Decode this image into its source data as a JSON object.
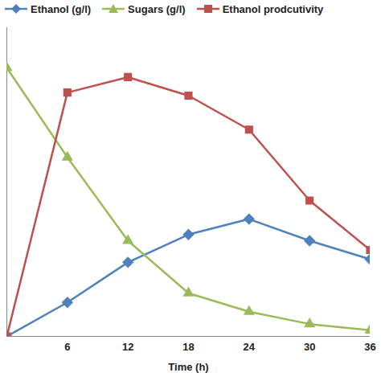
{
  "chart_data": {
    "type": "line",
    "x_label": "Time (h)",
    "x": [
      0,
      6,
      12,
      18,
      24,
      30,
      36
    ],
    "xlim": [
      0,
      36
    ],
    "xticks": [
      6,
      12,
      18,
      24,
      30,
      36
    ],
    "ylim": [
      0,
      100
    ],
    "tick_labels": "x",
    "legend": "top",
    "series": [
      {
        "name": "Ethanol (g/l)",
        "color": "#4f81bd",
        "marker": "diamond",
        "values": [
          0,
          11,
          24,
          33,
          38,
          31,
          25
        ]
      },
      {
        "name": "Sugars (g/l)",
        "color": "#9bbb59",
        "marker": "triangle",
        "values": [
          87,
          58,
          31,
          14,
          8,
          4,
          2
        ]
      },
      {
        "name": "Ethanol prodcutivity",
        "color": "#c0504d",
        "marker": "square",
        "values": [
          0,
          79,
          84,
          78,
          67,
          44,
          28
        ]
      }
    ]
  }
}
